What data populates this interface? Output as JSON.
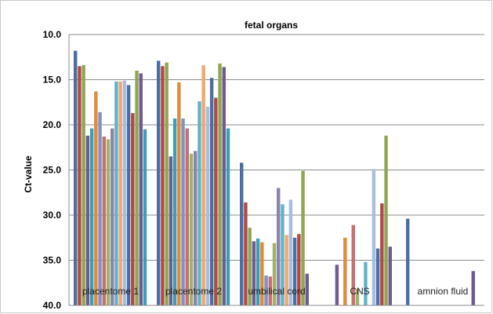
{
  "chart_data": {
    "type": "bar",
    "title": "fetal organs",
    "xlabel": "",
    "ylabel": "Ct-value",
    "ylim": [
      10,
      40
    ],
    "y_reversed": true,
    "y_ticks": [
      "10.0",
      "15.0",
      "20.0",
      "25.0",
      "30.0",
      "35.0",
      "40.0"
    ],
    "grid": true,
    "legend": "none",
    "categories": [
      "placentome 1",
      "placentome 2",
      "umbilical cord",
      "CNS",
      "amnion fluid"
    ],
    "series_colors": [
      "#4a6fa5",
      "#b04a45",
      "#8fa652",
      "#6f5a91",
      "#3c9db5",
      "#e08a3c",
      "#7b95c4",
      "#c87070",
      "#9eb26a",
      "#8e82aa",
      "#62b3c9",
      "#f0a870",
      "#a9bde0"
    ],
    "series": [
      {
        "values": [
          11.8,
          12.9,
          24.2,
          null,
          30.4
        ]
      },
      {
        "values": [
          13.5,
          13.5,
          28.6,
          null,
          null
        ]
      },
      {
        "values": [
          13.4,
          13.1,
          31.4,
          null,
          null
        ]
      },
      {
        "values": [
          21.2,
          23.5,
          32.9,
          35.5,
          null
        ]
      },
      {
        "values": [
          20.4,
          19.3,
          32.6,
          null,
          null
        ]
      },
      {
        "values": [
          16.3,
          15.3,
          33.0,
          32.5,
          null
        ]
      },
      {
        "values": [
          18.6,
          19.3,
          36.7,
          null,
          null
        ]
      },
      {
        "values": [
          21.3,
          20.4,
          36.8,
          31.1,
          null
        ]
      },
      {
        "values": [
          21.6,
          23.2,
          33.1,
          38.2,
          null
        ]
      },
      {
        "values": [
          20.4,
          22.9,
          27.0,
          null,
          null
        ]
      },
      {
        "values": [
          15.2,
          17.4,
          28.8,
          35.2,
          null
        ]
      },
      {
        "values": [
          15.2,
          13.4,
          32.2,
          null,
          null
        ]
      },
      {
        "values": [
          15.1,
          18.0,
          28.3,
          24.9,
          null
        ]
      },
      {
        "values": [
          15.6,
          14.8,
          32.5,
          33.7,
          null
        ]
      },
      {
        "values": [
          18.7,
          17.0,
          32.1,
          28.7,
          null
        ]
      },
      {
        "values": [
          14.0,
          13.2,
          25.1,
          21.2,
          null
        ]
      },
      {
        "values": [
          14.3,
          13.6,
          36.5,
          33.5,
          36.2
        ]
      },
      {
        "values": [
          20.5,
          20.4,
          null,
          null,
          null
        ]
      }
    ]
  }
}
